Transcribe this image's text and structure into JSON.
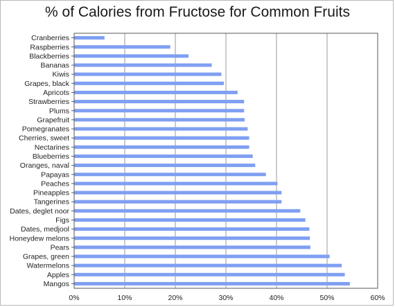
{
  "chart_data": {
    "type": "bar",
    "orientation": "horizontal",
    "title": "% of Calories from Fructose for Common Fruits",
    "xlabel": "",
    "ylabel": "",
    "xlim": [
      0,
      60
    ],
    "x_ticks": [
      "0%",
      "10%",
      "20%",
      "30%",
      "40%",
      "50%",
      "60%"
    ],
    "grid": "vertical",
    "legend": "none",
    "bar_color": "#7f9ff2",
    "categories": [
      "Cranberries",
      "Raspberries",
      "Blackberries",
      "Bananas",
      "Kiwis",
      "Grapes, black",
      "Apricots",
      "Strawberries",
      "Plums",
      "Grapefruit",
      "Pomegranates",
      "Cherries, sweet",
      "Nectarines",
      "Blueberries",
      "Oranges, naval",
      "Papayas",
      "Peaches",
      "Pineapples",
      "Tangerines",
      "Dates, deglet noor",
      "Figs",
      "Dates, medjool",
      "Honeydew melons",
      "Pears",
      "Grapes, green",
      "Watermelons",
      "Apples",
      "Mangos"
    ],
    "values": [
      6.0,
      19.0,
      22.6,
      27.2,
      29.1,
      29.6,
      32.3,
      33.6,
      33.6,
      33.7,
      34.3,
      34.6,
      34.6,
      35.3,
      35.8,
      37.9,
      40.2,
      41.0,
      41.0,
      44.7,
      45.7,
      46.5,
      46.6,
      46.7,
      50.5,
      52.9,
      53.5,
      54.5
    ]
  }
}
